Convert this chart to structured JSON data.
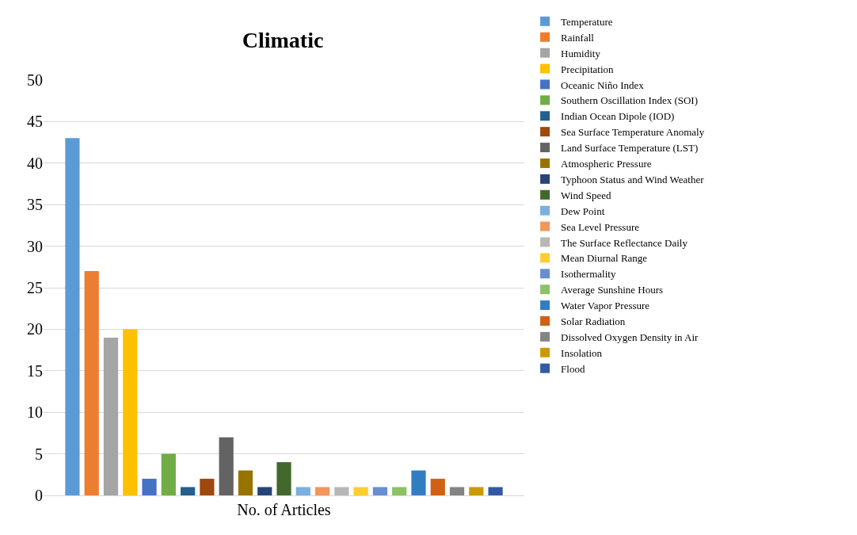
{
  "chart_data": {
    "type": "bar",
    "title": "Climatic",
    "categories": [
      "No. of Articles"
    ],
    "series": [
      {
        "name": "Temperature",
        "color": "#5b9bd5",
        "values": [
          43
        ]
      },
      {
        "name": "Rainfall",
        "color": "#ed7d31",
        "values": [
          27
        ]
      },
      {
        "name": "Humidity",
        "color": "#a5a5a5",
        "values": [
          19
        ]
      },
      {
        "name": "Precipitation",
        "color": "#ffc000",
        "values": [
          20
        ]
      },
      {
        "name": "Oceanic Niño Index",
        "color": "#4472c4",
        "values": [
          2
        ]
      },
      {
        "name": "Southern Oscillation Index (SOI)",
        "color": "#70ad47",
        "values": [
          5
        ]
      },
      {
        "name": "Indian Ocean Dipole (IOD)",
        "color": "#255e91",
        "values": [
          1
        ]
      },
      {
        "name": "Sea Surface Temperature Anomaly",
        "color": "#9e480e",
        "values": [
          2
        ]
      },
      {
        "name": "Land Surface Temperature (LST)",
        "color": "#636363",
        "values": [
          7
        ]
      },
      {
        "name": "Atmospheric Pressure",
        "color": "#997300",
        "values": [
          3
        ]
      },
      {
        "name": "Typhoon Status and Wind Weather",
        "color": "#264478",
        "values": [
          1
        ]
      },
      {
        "name": "Wind Speed",
        "color": "#43682b",
        "values": [
          4
        ]
      },
      {
        "name": "Dew Point",
        "color": "#7cafdd",
        "values": [
          1
        ]
      },
      {
        "name": "Sea Level Pressure",
        "color": "#f1975a",
        "values": [
          1
        ]
      },
      {
        "name": "The Surface Reflectance Daily",
        "color": "#b7b7b7",
        "values": [
          1
        ]
      },
      {
        "name": "Mean Diurnal Range",
        "color": "#ffcd33",
        "values": [
          1
        ]
      },
      {
        "name": "Isothermality",
        "color": "#698ed0",
        "values": [
          1
        ]
      },
      {
        "name": "Average Sunshine Hours",
        "color": "#8cc168",
        "values": [
          1
        ]
      },
      {
        "name": "Water Vapor Pressure",
        "color": "#327dc2",
        "values": [
          3
        ]
      },
      {
        "name": "Solar Radiation",
        "color": "#d26012",
        "values": [
          2
        ]
      },
      {
        "name": "Dissolved Oxygen Density in Air",
        "color": "#848484",
        "values": [
          1
        ]
      },
      {
        "name": "Insolation",
        "color": "#cc9a00",
        "values": [
          1
        ]
      },
      {
        "name": "Flood",
        "color": "#335aa1",
        "values": [
          1
        ]
      }
    ],
    "ylim": [
      0,
      50
    ],
    "yticks": [
      0,
      5,
      10,
      15,
      20,
      25,
      30,
      35,
      40,
      45,
      50
    ],
    "grid": "y",
    "legend": "right"
  }
}
